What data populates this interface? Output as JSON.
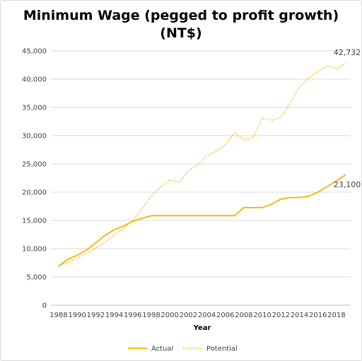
{
  "chart_data": {
    "type": "line",
    "title_line1": "Minimum Wage (pegged to profit growth)",
    "title_line2": "(NT$)",
    "xlabel": "Year",
    "ylabel": "",
    "xlim": [
      1988,
      2019
    ],
    "ylim": [
      0,
      45000
    ],
    "y_ticks": [
      "0",
      "5,000",
      "10,000",
      "15,000",
      "20,000",
      "25,000",
      "30,000",
      "35,000",
      "40,000",
      "45,000"
    ],
    "x_ticks": [
      "1988",
      "1990",
      "1992",
      "1994",
      "1996",
      "1998",
      "2000",
      "2002",
      "2004",
      "2006",
      "2008",
      "2010",
      "2012",
      "2014",
      "2016",
      "2018"
    ],
    "grid": "horizontal",
    "legend_position": "bottom",
    "x": [
      1988,
      1989,
      1990,
      1991,
      1992,
      1993,
      1994,
      1995,
      1996,
      1997,
      1998,
      1999,
      2000,
      2001,
      2002,
      2003,
      2004,
      2005,
      2006,
      2007,
      2008,
      2009,
      2010,
      2011,
      2012,
      2013,
      2014,
      2015,
      2016,
      2017,
      2018,
      2019
    ],
    "series": [
      {
        "name": "Actual",
        "style": "solid",
        "color": "#F2B400",
        "values": [
          6900,
          8130,
          8820,
          9750,
          11040,
          12365,
          13350,
          14010,
          14880,
          15360,
          15840,
          15840,
          15840,
          15840,
          15840,
          15840,
          15840,
          15840,
          15840,
          15840,
          17280,
          17280,
          17280,
          17880,
          18780,
          19047,
          19047,
          19273,
          20008,
          21009,
          22000,
          23100
        ],
        "end_label": "23,100"
      },
      {
        "name": "Potential",
        "style": "dotted",
        "color": "#F2B400",
        "values": [
          6900,
          7600,
          8300,
          9200,
          10100,
          11100,
          12400,
          13600,
          15000,
          17000,
          19300,
          20900,
          22200,
          21700,
          23800,
          24800,
          26500,
          27200,
          28400,
          30500,
          29200,
          29700,
          33200,
          32700,
          33200,
          35800,
          38600,
          40200,
          41400,
          42300,
          41900,
          42732
        ],
        "end_label": "42,732"
      }
    ]
  }
}
